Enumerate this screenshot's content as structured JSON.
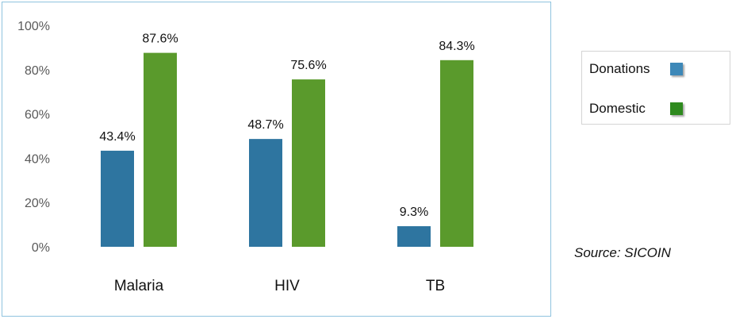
{
  "chart_data": {
    "type": "bar",
    "categories": [
      "Malaria",
      "HIV",
      "TB"
    ],
    "series": [
      {
        "name": "Donations",
        "color": "#2e75a0",
        "values": [
          43.4,
          48.7,
          9.3
        ],
        "labels": [
          "43.4%",
          "48.7%",
          "9.3%"
        ]
      },
      {
        "name": "Domestic",
        "color": "#5a9a2c",
        "values": [
          87.6,
          75.6,
          84.3
        ],
        "labels": [
          "87.6%",
          "75.6%",
          "84.3%"
        ]
      }
    ],
    "ylim": [
      0,
      100
    ],
    "yticks": [
      "0%",
      "20%",
      "40%",
      "60%",
      "80%",
      "100%"
    ],
    "grid": false,
    "legend_position": "right"
  },
  "legend": {
    "items": [
      {
        "label": "Donations",
        "color": "#3d88b8"
      },
      {
        "label": "Domestic",
        "color": "#2e8a1e"
      }
    ]
  },
  "source": "Source: SICOIN"
}
